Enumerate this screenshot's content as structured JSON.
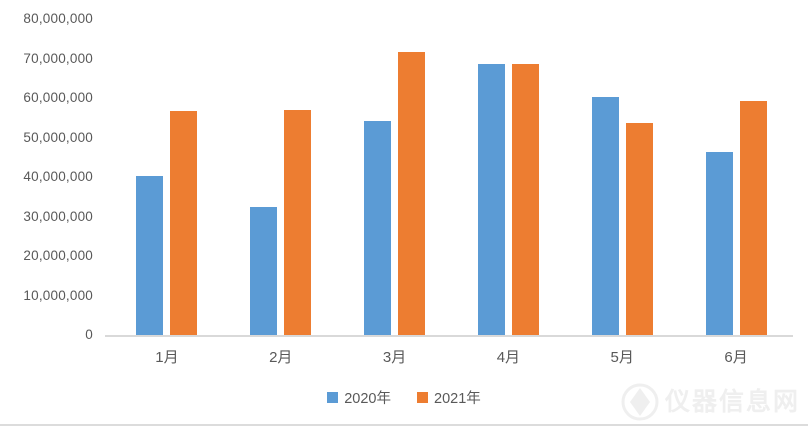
{
  "page": {
    "background": "#ffffff",
    "bottom_divider_color": "#dcdcdc"
  },
  "watermark": {
    "text": "仪器信息网",
    "logo": "instrument-info-logo"
  },
  "chart_data": {
    "type": "bar",
    "title": "",
    "xlabel": "",
    "ylabel": "",
    "categories": [
      "1月",
      "2月",
      "3月",
      "4月",
      "5月",
      "6月"
    ],
    "series": [
      {
        "name": "2020年",
        "color": "#5B9BD5",
        "values": [
          40300000,
          32400000,
          54300000,
          68600000,
          60300000,
          46400000
        ]
      },
      {
        "name": "2021年",
        "color": "#ED7D31",
        "values": [
          56700000,
          57000000,
          71700000,
          68700000,
          53700000,
          59200000
        ]
      }
    ],
    "ylim": [
      0,
      80000000
    ],
    "ytick_values": [
      0,
      10000000,
      20000000,
      30000000,
      40000000,
      50000000,
      60000000,
      70000000,
      80000000
    ],
    "ytick_labels": [
      "0",
      "10,000,000",
      "20,000,000",
      "30,000,000",
      "40,000,000",
      "50,000,000",
      "60,000,000",
      "70,000,000",
      "80,000,000"
    ],
    "grid": false,
    "legend_position": "bottom",
    "axis_color": "#d9d9d9",
    "label_color": "#595959"
  }
}
